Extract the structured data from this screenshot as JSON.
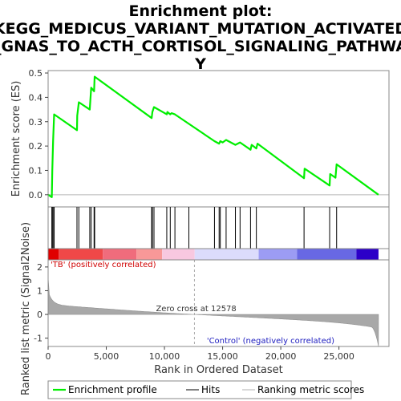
{
  "title_lines": [
    "Enrichment plot:",
    "KEGG_MEDICUS_VARIANT_MUTATION_ACTIVATED",
    "_GNAS_TO_ACTH_CORTISOL_SIGNALING_PATHWA",
    "Y"
  ],
  "chart_data": {
    "type": "line",
    "es_panel": {
      "ylabel": "Enrichment score (ES)",
      "ylim": [
        -0.05,
        0.51
      ],
      "yticks": [
        "0.0",
        "0.1",
        "0.2",
        "0.3",
        "0.4",
        "0.5"
      ],
      "ytick_values": [
        0,
        0.1,
        0.2,
        0.3,
        0.4,
        0.5
      ],
      "series_color": "#00ee00",
      "points": [
        [
          0,
          0.0
        ],
        [
          320,
          -0.01
        ],
        [
          360,
          0.1
        ],
        [
          430,
          0.22
        ],
        [
          520,
          0.33
        ],
        [
          2480,
          0.265
        ],
        [
          2500,
          0.325
        ],
        [
          2640,
          0.38
        ],
        [
          3580,
          0.35
        ],
        [
          3640,
          0.395
        ],
        [
          3700,
          0.44
        ],
        [
          3950,
          0.425
        ],
        [
          4000,
          0.485
        ],
        [
          8900,
          0.315
        ],
        [
          8960,
          0.34
        ],
        [
          9100,
          0.36
        ],
        [
          10200,
          0.33
        ],
        [
          10250,
          0.34
        ],
        [
          10500,
          0.33
        ],
        [
          10600,
          0.335
        ],
        [
          10900,
          0.33
        ],
        [
          14300,
          0.22
        ],
        [
          14700,
          0.21
        ],
        [
          14800,
          0.22
        ],
        [
          15000,
          0.215
        ],
        [
          15300,
          0.225
        ],
        [
          16100,
          0.205
        ],
        [
          16500,
          0.215
        ],
        [
          17400,
          0.185
        ],
        [
          17500,
          0.205
        ],
        [
          17900,
          0.19
        ],
        [
          18000,
          0.21
        ],
        [
          22000,
          0.068
        ],
        [
          22050,
          0.107
        ],
        [
          24200,
          0.038
        ],
        [
          24250,
          0.085
        ],
        [
          24700,
          0.07
        ],
        [
          24800,
          0.125
        ],
        [
          28400,
          0.0
        ]
      ]
    },
    "hits": [
      320,
      360,
      430,
      520,
      2480,
      2640,
      3580,
      3700,
      3950,
      4000,
      8900,
      8960,
      9100,
      10200,
      10500,
      10900,
      12100,
      14300,
      14700,
      14800,
      15300,
      16100,
      16500,
      17400,
      17900,
      22000,
      24200,
      24800
    ],
    "rank_panel": {
      "ylabel": "Ranked list metric (Signal2Noise)",
      "ylim": [
        -1.35,
        2.3
      ],
      "yticks": [
        "2",
        "1",
        "0",
        "-1"
      ],
      "ytick_values": [
        2,
        1,
        0,
        -1
      ],
      "zero_cross_label": "Zero cross at 12578",
      "zero_cross": 12578,
      "positive_label": "'TB' (positively correlated)",
      "negative_label": "'Control' (negatively correlated)",
      "fill_color": "#a8a8a8"
    },
    "xaxis": {
      "label": "Rank in Ordered Dataset",
      "xlim": [
        0,
        29300
      ],
      "max_rank": 28400,
      "ticks": [
        "0",
        "5,000",
        "10,000",
        "15,000",
        "20,000",
        "25,000"
      ],
      "tick_values": [
        0,
        5000,
        10000,
        15000,
        20000,
        25000
      ]
    },
    "heat_bar": [
      {
        "to": 900,
        "color": "#e00000"
      },
      {
        "to": 4700,
        "color": "#f04848"
      },
      {
        "to": 7600,
        "color": "#f06c7c"
      },
      {
        "to": 9800,
        "color": "#f89898"
      },
      {
        "to": 12600,
        "color": "#f8c8e0"
      },
      {
        "to": 18100,
        "color": "#dcdcfc"
      },
      {
        "to": 21400,
        "color": "#9c9cf4"
      },
      {
        "to": 26500,
        "color": "#6868e4"
      },
      {
        "to": 28400,
        "color": "#2c00c8"
      }
    ],
    "legend": [
      {
        "label": "Enrichment profile",
        "color": "#00ee00"
      },
      {
        "label": "Hits",
        "color": "#000000"
      },
      {
        "label": "Ranking metric scores",
        "color": "#b0b0b0"
      }
    ]
  }
}
